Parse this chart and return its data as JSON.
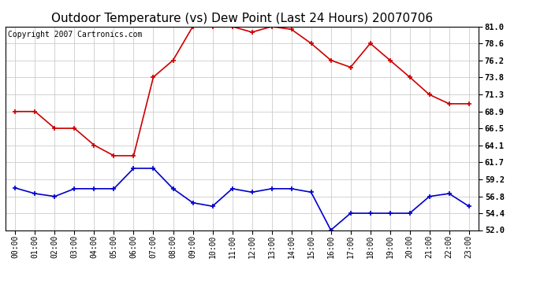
{
  "title": "Outdoor Temperature (vs) Dew Point (Last 24 Hours) 20070706",
  "copyright": "Copyright 2007 Cartronics.com",
  "x_labels": [
    "00:00",
    "01:00",
    "02:00",
    "03:00",
    "04:00",
    "05:00",
    "06:00",
    "07:00",
    "08:00",
    "09:00",
    "10:00",
    "11:00",
    "12:00",
    "13:00",
    "14:00",
    "15:00",
    "16:00",
    "17:00",
    "18:00",
    "19:00",
    "20:00",
    "21:00",
    "22:00",
    "23:00"
  ],
  "temp_data": [
    68.9,
    68.9,
    66.5,
    66.5,
    64.1,
    62.6,
    62.6,
    73.8,
    76.2,
    81.0,
    81.0,
    81.0,
    80.2,
    81.0,
    80.6,
    78.6,
    76.2,
    75.2,
    78.6,
    76.2,
    73.8,
    71.3,
    70.0,
    70.0
  ],
  "dew_data": [
    58.0,
    57.2,
    56.8,
    57.9,
    57.9,
    57.9,
    60.8,
    60.8,
    57.9,
    55.9,
    55.4,
    57.9,
    57.4,
    57.9,
    57.9,
    57.4,
    52.0,
    54.4,
    54.4,
    54.4,
    54.4,
    56.8,
    57.2,
    55.4
  ],
  "temp_color": "#cc0000",
  "dew_color": "#0000cc",
  "ylim_min": 52.0,
  "ylim_max": 81.0,
  "yticks": [
    52.0,
    54.4,
    56.8,
    59.2,
    61.7,
    64.1,
    66.5,
    68.9,
    71.3,
    73.8,
    76.2,
    78.6,
    81.0
  ],
  "bg_color": "#ffffff",
  "plot_bg_color": "#ffffff",
  "grid_color": "#cccccc",
  "title_fontsize": 11,
  "copyright_fontsize": 7,
  "tick_fontsize": 7,
  "ytick_fontsize": 7.5
}
